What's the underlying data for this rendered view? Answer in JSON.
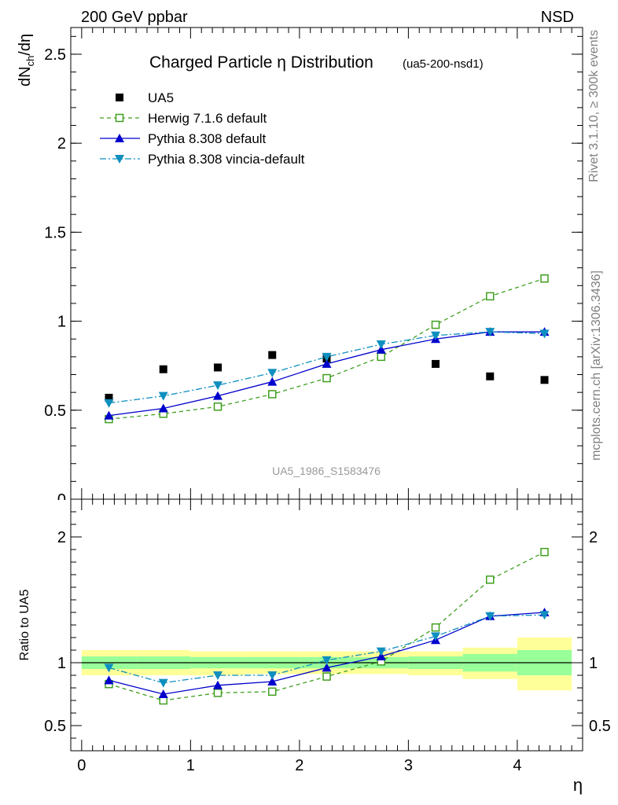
{
  "header": {
    "left": "200 GeV ppbar",
    "right": "NSD"
  },
  "side_text": {
    "rivet": "Rivet 3.1.10, ≥ 300k events",
    "mcplots": "mcplots.cern.ch [arXiv:1306.3436]"
  },
  "chart_data": [
    {
      "type": "line",
      "panel": "main",
      "title": "Charged Particle η Distribution",
      "title_tag": "(ua5-200-nsd1)",
      "watermark": "UA5_1986_S1583476",
      "ylabel": "dNch/dη",
      "ylim": [
        0,
        2.65
      ],
      "yticks": [
        0.5,
        1,
        1.5,
        2,
        2.5
      ],
      "ytick_labels": [
        "0.5",
        "1",
        "1.5",
        "2",
        "2.5"
      ],
      "legend_position": "top-left",
      "x": [
        0.25,
        0.75,
        1.25,
        1.75,
        2.25,
        2.75,
        3.25,
        3.75,
        4.25
      ],
      "series": [
        {
          "name": "UA5",
          "color": "#000000",
          "marker": "square-filled",
          "line": "none",
          "values": [
            0.57,
            0.73,
            0.74,
            0.81,
            0.79,
            0.8,
            0.76,
            0.69,
            0.67
          ]
        },
        {
          "name": "Herwig 7.1.6 default",
          "color": "#3f9f1f",
          "marker": "square-open",
          "line": "dashed",
          "values": [
            0.45,
            0.48,
            0.52,
            0.59,
            0.68,
            0.8,
            0.98,
            1.14,
            1.24
          ]
        },
        {
          "name": "Pythia 8.308 default",
          "color": "#0000cc",
          "marker": "triangle-up",
          "line": "solid",
          "values": [
            0.47,
            0.51,
            0.58,
            0.66,
            0.76,
            0.84,
            0.9,
            0.94,
            0.94
          ]
        },
        {
          "name": "Pythia 8.308 vincia-default",
          "color": "#0f8fbf",
          "marker": "triangle-down",
          "line": "dashdot",
          "values": [
            0.54,
            0.58,
            0.64,
            0.71,
            0.8,
            0.87,
            0.92,
            0.94,
            0.93
          ]
        }
      ]
    },
    {
      "type": "line",
      "panel": "ratio",
      "ylabel": "Ratio to UA5",
      "xlabel": "η",
      "ylim": [
        0.3,
        2.3
      ],
      "yticks": [
        0.5,
        1,
        2
      ],
      "ytick_labels": [
        "0.5",
        "1",
        "2"
      ],
      "xlim": [
        -0.1,
        4.6
      ],
      "xticks": [
        0,
        1,
        2,
        3,
        4
      ],
      "xtick_labels": [
        "0",
        "1",
        "2",
        "3",
        "4"
      ],
      "bands": {
        "edges": [
          0,
          0.5,
          1,
          1.5,
          2,
          2.5,
          3,
          3.5,
          4,
          4.5
        ],
        "stat": [
          [
            0.95,
            1.05
          ],
          [
            0.95,
            1.05
          ],
          [
            0.955,
            1.045
          ],
          [
            0.955,
            1.045
          ],
          [
            0.955,
            1.045
          ],
          [
            0.955,
            1.045
          ],
          [
            0.95,
            1.05
          ],
          [
            0.93,
            1.07
          ],
          [
            0.9,
            1.1
          ]
        ],
        "total": [
          [
            0.9,
            1.1
          ],
          [
            0.9,
            1.1
          ],
          [
            0.9,
            1.09
          ],
          [
            0.91,
            1.09
          ],
          [
            0.91,
            1.09
          ],
          [
            0.91,
            1.09
          ],
          [
            0.9,
            1.09
          ],
          [
            0.87,
            1.12
          ],
          [
            0.78,
            1.2
          ]
        ],
        "stat_color": "#99ff99",
        "total_color": "#ffff99"
      },
      "x": [
        0.25,
        0.75,
        1.25,
        1.75,
        2.25,
        2.75,
        3.25,
        3.75,
        4.25
      ],
      "series": [
        {
          "name": "Herwig 7.1.6 default",
          "color": "#3f9f1f",
          "marker": "square-open",
          "line": "dashed",
          "values": [
            0.83,
            0.7,
            0.76,
            0.77,
            0.89,
            1.01,
            1.28,
            1.66,
            1.88
          ]
        },
        {
          "name": "Pythia 8.308 default",
          "color": "#0000cc",
          "marker": "triangle-up",
          "line": "solid",
          "values": [
            0.86,
            0.75,
            0.82,
            0.85,
            0.96,
            1.05,
            1.18,
            1.37,
            1.4
          ]
        },
        {
          "name": "Pythia 8.308 vincia-default",
          "color": "#0f8fbf",
          "marker": "triangle-down",
          "line": "dashdot",
          "values": [
            0.96,
            0.84,
            0.9,
            0.9,
            1.02,
            1.09,
            1.21,
            1.37,
            1.38
          ]
        }
      ]
    }
  ]
}
